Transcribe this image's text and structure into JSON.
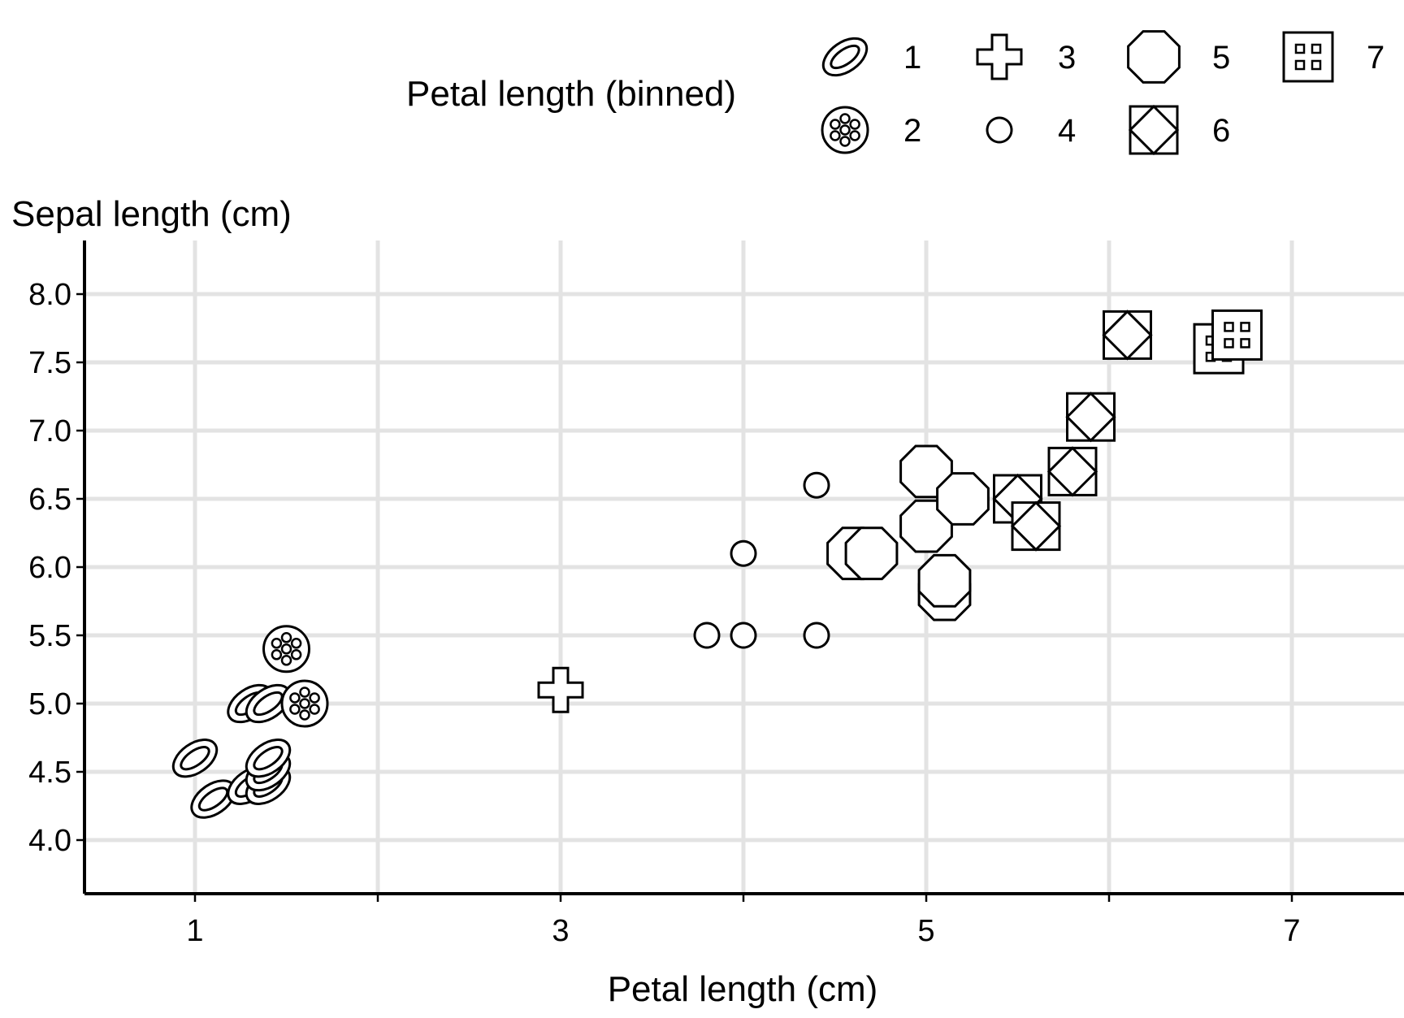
{
  "chart_data": {
    "type": "scatter",
    "xlabel": "Petal length (cm)",
    "ylabel": "Sepal length (cm)",
    "xlim": [
      0.4,
      7.6
    ],
    "ylim": [
      3.6,
      8.4
    ],
    "x_ticks": [
      1,
      2,
      3,
      4,
      5,
      6,
      7
    ],
    "x_tick_labels": [
      "1",
      "",
      "3",
      "",
      "5",
      "",
      "7"
    ],
    "y_ticks": [
      4.0,
      4.5,
      5.0,
      5.5,
      6.0,
      6.5,
      7.0,
      7.5,
      8.0
    ],
    "y_tick_labels": [
      "4.0",
      "4.5",
      "5.0",
      "5.5",
      "6.0",
      "6.5",
      "7.0",
      "7.5",
      "8.0"
    ],
    "grid": true,
    "legend": {
      "title": "Petal length (binned)",
      "placement": "top",
      "entries": [
        {
          "label": "1",
          "shape": "ellipse-ring"
        },
        {
          "label": "2",
          "shape": "dotted-circle"
        },
        {
          "label": "3",
          "shape": "plus"
        },
        {
          "label": "4",
          "shape": "flower"
        },
        {
          "label": "5",
          "shape": "octagon"
        },
        {
          "label": "6",
          "shape": "square-diamond"
        },
        {
          "label": "7",
          "shape": "square-grid"
        }
      ]
    },
    "points": [
      {
        "x": 1.0,
        "y": 4.6,
        "bin": "1"
      },
      {
        "x": 1.1,
        "y": 4.3,
        "bin": "1"
      },
      {
        "x": 1.3,
        "y": 4.4,
        "bin": "1"
      },
      {
        "x": 1.4,
        "y": 4.4,
        "bin": "1"
      },
      {
        "x": 1.4,
        "y": 4.5,
        "bin": "1"
      },
      {
        "x": 1.4,
        "y": 4.6,
        "bin": "1"
      },
      {
        "x": 1.3,
        "y": 5.0,
        "bin": "1"
      },
      {
        "x": 1.4,
        "y": 5.0,
        "bin": "1"
      },
      {
        "x": 1.5,
        "y": 5.4,
        "bin": "2"
      },
      {
        "x": 1.6,
        "y": 5.0,
        "bin": "2"
      },
      {
        "x": 3.0,
        "y": 5.1,
        "bin": "3"
      },
      {
        "x": 3.8,
        "y": 5.5,
        "bin": "4"
      },
      {
        "x": 4.0,
        "y": 5.5,
        "bin": "4"
      },
      {
        "x": 4.0,
        "y": 6.1,
        "bin": "4"
      },
      {
        "x": 4.4,
        "y": 5.5,
        "bin": "4"
      },
      {
        "x": 4.4,
        "y": 6.6,
        "bin": "4"
      },
      {
        "x": 4.6,
        "y": 6.1,
        "bin": "5"
      },
      {
        "x": 4.7,
        "y": 6.1,
        "bin": "5"
      },
      {
        "x": 5.0,
        "y": 6.3,
        "bin": "5"
      },
      {
        "x": 5.0,
        "y": 6.7,
        "bin": "5"
      },
      {
        "x": 5.1,
        "y": 5.8,
        "bin": "5"
      },
      {
        "x": 5.1,
        "y": 5.9,
        "bin": "5"
      },
      {
        "x": 5.2,
        "y": 6.5,
        "bin": "5"
      },
      {
        "x": 5.5,
        "y": 6.5,
        "bin": "6"
      },
      {
        "x": 5.6,
        "y": 6.3,
        "bin": "6"
      },
      {
        "x": 5.8,
        "y": 6.7,
        "bin": "6"
      },
      {
        "x": 5.9,
        "y": 7.1,
        "bin": "6"
      },
      {
        "x": 6.1,
        "y": 7.7,
        "bin": "6"
      },
      {
        "x": 6.6,
        "y": 7.6,
        "bin": "7"
      },
      {
        "x": 6.7,
        "y": 7.7,
        "bin": "7"
      }
    ]
  }
}
